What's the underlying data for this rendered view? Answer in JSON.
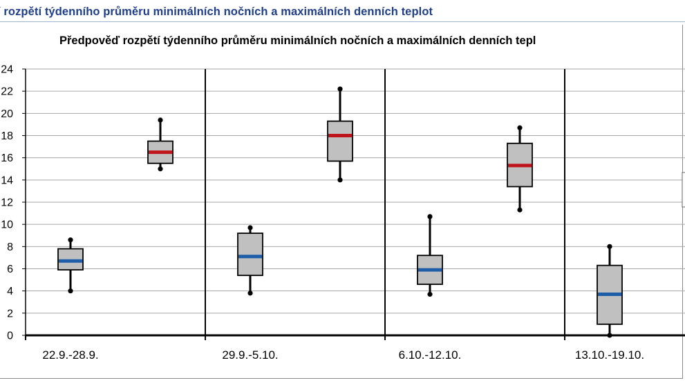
{
  "page": {
    "heading": "í rozpětí týdenního průměru minimálních nočních a maximálních denních teplot"
  },
  "colors": {
    "heading": "#1f3f8c",
    "min_median": "#1e5ea8",
    "max_median": "#c0141c",
    "box_fill": "#c0c0c0",
    "grid": "#a6a6a6"
  },
  "chart_data": {
    "type": "boxplot",
    "title": "Předpověď rozpětí týdenního průměru minimálních nočních a maximálních denních tepl",
    "xlabel": "",
    "ylabel": "",
    "ylim": [
      0,
      24
    ],
    "yticks": [
      0,
      2,
      4,
      6,
      8,
      10,
      12,
      14,
      16,
      18,
      20,
      22,
      24
    ],
    "grid": true,
    "categories": [
      "22.9.-28.9.",
      "29.9.-5.10.",
      "6.10.-12.10.",
      "13.10.-19.10."
    ],
    "series": [
      {
        "color": "#1e5ea8",
        "boxes": [
          {
            "whisker_low": 4.0,
            "q1": 5.9,
            "median": 6.7,
            "q3": 7.8,
            "whisker_high": 8.6
          },
          {
            "whisker_low": 3.8,
            "q1": 5.4,
            "median": 7.1,
            "q3": 9.2,
            "whisker_high": 9.7
          },
          {
            "whisker_low": 3.7,
            "q1": 4.6,
            "median": 5.9,
            "q3": 7.2,
            "whisker_high": 10.7
          },
          {
            "whisker_low": 0.0,
            "q1": 1.0,
            "median": 3.7,
            "q3": 6.3,
            "whisker_high": 8.0
          }
        ]
      },
      {
        "color": "#c0141c",
        "boxes": [
          {
            "whisker_low": 15.0,
            "q1": 15.5,
            "median": 16.5,
            "q3": 17.5,
            "whisker_high": 19.4
          },
          {
            "whisker_low": 14.0,
            "q1": 15.7,
            "median": 18.0,
            "q3": 19.3,
            "whisker_high": 22.2
          },
          {
            "whisker_low": 11.3,
            "q1": 13.4,
            "median": 15.3,
            "q3": 17.3,
            "whisker_high": 18.7
          },
          null
        ]
      }
    ]
  }
}
